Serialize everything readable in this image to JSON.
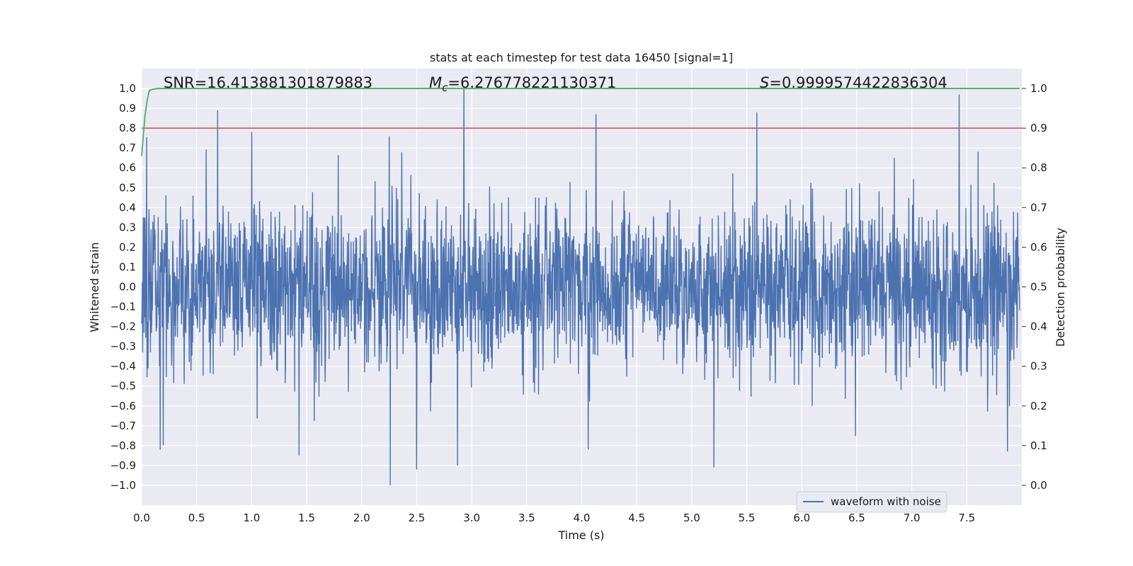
{
  "chart_data": {
    "type": "line",
    "title": "stats at each timestep for test data 16450 [signal=1]",
    "xlabel": "Time (s)",
    "ylabel": "Whitened strain",
    "y2label": "Detection probability",
    "xlim": [
      0.0,
      8.0
    ],
    "ylim": [
      -1.1,
      1.1
    ],
    "y2lim": [
      -0.05,
      1.05
    ],
    "xticks": [
      0.0,
      0.5,
      1.0,
      1.5,
      2.0,
      2.5,
      3.0,
      3.5,
      4.0,
      4.5,
      5.0,
      5.5,
      6.0,
      6.5,
      7.0,
      7.5
    ],
    "xtick_labels": [
      "0.0",
      "0.5",
      "1.0",
      "1.5",
      "2.0",
      "2.5",
      "3.0",
      "3.5",
      "4.0",
      "4.5",
      "5.0",
      "5.5",
      "6.0",
      "6.5",
      "7.0",
      "7.5"
    ],
    "yticks": [
      -1.0,
      -0.9,
      -0.8,
      -0.7,
      -0.6,
      -0.5,
      -0.4,
      -0.3,
      -0.2,
      -0.1,
      0.0,
      0.1,
      0.2,
      0.3,
      0.4,
      0.5,
      0.6,
      0.7,
      0.8,
      0.9,
      1.0
    ],
    "ytick_labels": [
      "−1.0",
      "−0.9",
      "−0.8",
      "−0.7",
      "−0.6",
      "−0.5",
      "−0.4",
      "−0.3",
      "−0.2",
      "−0.1",
      "0.0",
      "0.1",
      "0.2",
      "0.3",
      "0.4",
      "0.5",
      "0.6",
      "0.7",
      "0.8",
      "0.9",
      "1.0"
    ],
    "y2ticks": [
      0.0,
      0.1,
      0.2,
      0.3,
      0.4,
      0.5,
      0.6,
      0.7,
      0.8,
      0.9,
      1.0
    ],
    "y2tick_labels": [
      "0.0",
      "0.1",
      "0.2",
      "0.3",
      "0.4",
      "0.5",
      "0.6",
      "0.7",
      "0.8",
      "0.9",
      "1.0"
    ],
    "annotations": {
      "snr": "SNR=16.413881301879883",
      "mc_symbol": "M",
      "mc_sub": "c",
      "mc_value": "=6.276778221130371",
      "s_symbol": "S",
      "s_value": "=0.9999574422836304"
    },
    "legend": {
      "label": "waveform with noise",
      "position": "lower-right"
    },
    "series": [
      {
        "name": "waveform with noise",
        "axis": "left",
        "color": "#4c72b0",
        "description": "dense noisy whitened strain; amplitude roughly ±0.4, occasional spikes to ±0.9",
        "peaks": [
          {
            "x": 0.69,
            "y": 0.89
          },
          {
            "x": 2.93,
            "y": 1.0
          },
          {
            "x": 4.13,
            "y": 0.87
          },
          {
            "x": 5.59,
            "y": 0.88
          },
          {
            "x": 7.43,
            "y": 0.97
          },
          {
            "x": 2.26,
            "y": -1.0
          },
          {
            "x": 2.5,
            "y": -0.92
          },
          {
            "x": 5.2,
            "y": -0.91
          },
          {
            "x": 1.43,
            "y": -0.85
          },
          {
            "x": 7.87,
            "y": -0.83
          },
          {
            "x": 0.17,
            "y": -0.82
          },
          {
            "x": 4.06,
            "y": -0.82
          },
          {
            "x": 2.87,
            "y": -0.9
          }
        ]
      },
      {
        "name": "threshold",
        "axis": "right",
        "color": "#c44e52",
        "values": [
          0.9,
          0.9
        ],
        "x": [
          0.0,
          8.0
        ]
      },
      {
        "name": "detection probability",
        "axis": "right",
        "color": "#55a868",
        "x": [
          0.0,
          0.03,
          0.05,
          0.07,
          0.1,
          0.15,
          0.3,
          8.0
        ],
        "values": [
          0.83,
          0.93,
          0.97,
          0.995,
          0.998,
          1.0,
          1.0,
          1.0
        ]
      }
    ]
  }
}
